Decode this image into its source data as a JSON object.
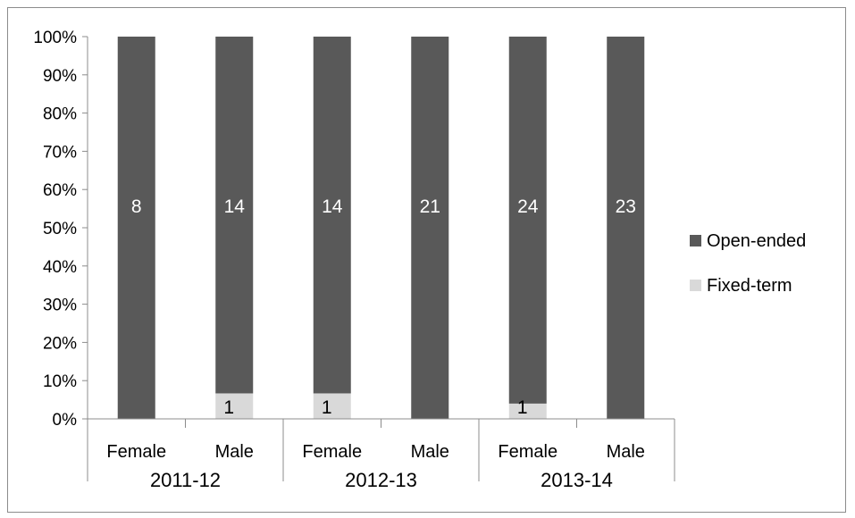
{
  "chart_data": {
    "type": "bar",
    "stacked": true,
    "percent_stacked": true,
    "title": "",
    "xlabel": "",
    "ylabel": "",
    "ylim": [
      0,
      100
    ],
    "y_ticks": [
      "0%",
      "10%",
      "20%",
      "30%",
      "40%",
      "50%",
      "60%",
      "70%",
      "80%",
      "90%",
      "100%"
    ],
    "categories": [
      "Female",
      "Male",
      "Female",
      "Male",
      "Female",
      "Male"
    ],
    "groups": [
      {
        "label": "2011-12",
        "span": 2
      },
      {
        "label": "2012-13",
        "span": 2
      },
      {
        "label": "2013-14",
        "span": 2
      }
    ],
    "series": [
      {
        "name": "Fixed-term",
        "color": "#d9d9d9",
        "values": [
          0,
          1,
          1,
          0,
          1,
          0
        ],
        "labels": [
          "",
          "1",
          "1",
          "",
          "1",
          ""
        ]
      },
      {
        "name": "Open-ended",
        "color": "#595959",
        "values": [
          8,
          14,
          14,
          21,
          24,
          23
        ],
        "labels": [
          "8",
          "14",
          "14",
          "21",
          "24",
          "23"
        ]
      }
    ],
    "legend": {
      "position": "right",
      "entries": [
        {
          "name": "Open-ended",
          "color": "#595959"
        },
        {
          "name": "Fixed-term",
          "color": "#d9d9d9"
        }
      ]
    },
    "grid": false
  }
}
